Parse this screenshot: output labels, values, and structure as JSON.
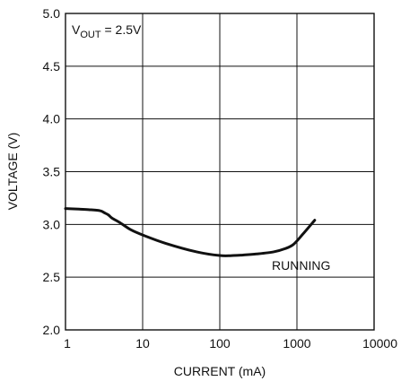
{
  "chart_data": {
    "type": "line",
    "title": "",
    "xlabel": "CURRENT (mA)",
    "ylabel": "VOLTAGE (V)",
    "x_scale": "log",
    "xlim": [
      1,
      10000
    ],
    "ylim": [
      2.0,
      5.0
    ],
    "x_tick_labels": [
      "1",
      "10",
      "100",
      "1000",
      "10000"
    ],
    "y_tick_labels": [
      "2.0",
      "2.5",
      "3.0",
      "3.5",
      "4.0",
      "4.5",
      "5.0"
    ],
    "grid": true,
    "condition_label": {
      "base": "V",
      "sub": "OUT",
      "rest": " = 2.5V"
    },
    "series": [
      {
        "name": "RUNNING",
        "x": [
          1,
          1.5,
          2,
          2.8,
          3.2,
          3.6,
          4,
          5,
          7,
          10,
          20,
          50,
          100,
          150,
          200,
          300,
          500,
          700,
          900,
          1200,
          1700
        ],
        "y": [
          3.15,
          3.145,
          3.14,
          3.13,
          3.11,
          3.09,
          3.06,
          3.02,
          2.95,
          2.9,
          2.82,
          2.74,
          2.705,
          2.705,
          2.71,
          2.72,
          2.74,
          2.77,
          2.81,
          2.91,
          3.04
        ]
      }
    ],
    "line_color": "#111111"
  }
}
